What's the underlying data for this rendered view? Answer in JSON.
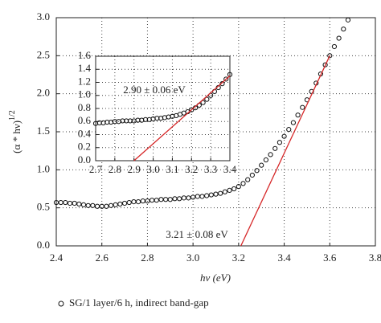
{
  "chart_data": [
    {
      "type": "scatter",
      "xlabel": "hν (eV)",
      "ylabel": "(α * hν)",
      "ylabel_exponent": "1/2",
      "xlim": [
        2.4,
        3.8
      ],
      "ylim": [
        0,
        3
      ],
      "xticks": [
        2.4,
        2.6,
        2.8,
        {
          "value": 3,
          "label": "3.0"
        },
        3.2,
        3.4,
        3.6,
        3.8
      ],
      "yticks": [
        {
          "value": 0,
          "label": "0.0"
        },
        0.5,
        {
          "value": 1,
          "label": "1.0"
        },
        1.5,
        {
          "value": 2,
          "label": "2.0"
        },
        2.5,
        {
          "value": 3,
          "label": "3.0"
        }
      ],
      "grid": true,
      "series": [
        {
          "name": "SG/1 layer/6 h, indirect band-gap",
          "color": "#111111",
          "x": [
            2.4,
            2.42,
            2.44,
            2.46,
            2.48,
            2.5,
            2.52,
            2.54,
            2.56,
            2.58,
            2.6,
            2.62,
            2.64,
            2.66,
            2.68,
            2.7,
            2.72,
            2.74,
            2.76,
            2.78,
            2.8,
            2.82,
            2.84,
            2.86,
            2.88,
            2.9,
            2.92,
            2.94,
            2.96,
            2.98,
            3.0,
            3.02,
            3.04,
            3.06,
            3.08,
            3.1,
            3.12,
            3.14,
            3.16,
            3.18,
            3.2,
            3.22,
            3.24,
            3.26,
            3.28,
            3.3,
            3.32,
            3.34,
            3.36,
            3.38,
            3.4,
            3.42,
            3.44,
            3.46,
            3.48,
            3.5,
            3.52,
            3.54,
            3.56,
            3.58,
            3.6,
            3.62,
            3.64,
            3.66,
            3.68
          ],
          "values": [
            0.57,
            0.57,
            0.57,
            0.56,
            0.56,
            0.55,
            0.54,
            0.53,
            0.53,
            0.52,
            0.52,
            0.52,
            0.53,
            0.54,
            0.55,
            0.56,
            0.57,
            0.58,
            0.58,
            0.59,
            0.59,
            0.6,
            0.6,
            0.61,
            0.61,
            0.61,
            0.62,
            0.62,
            0.63,
            0.63,
            0.64,
            0.65,
            0.65,
            0.66,
            0.67,
            0.68,
            0.69,
            0.71,
            0.73,
            0.75,
            0.78,
            0.82,
            0.87,
            0.93,
            0.99,
            1.06,
            1.13,
            1.2,
            1.28,
            1.36,
            1.44,
            1.53,
            1.62,
            1.72,
            1.82,
            1.92,
            2.03,
            2.14,
            2.26,
            2.38,
            2.5,
            2.62,
            2.73,
            2.85,
            2.97
          ]
        }
      ],
      "fit": {
        "color": "#d62728",
        "x": [
          3.21,
          3.6
        ],
        "values": [
          0,
          2.5
        ]
      },
      "annotation": "3.21 ± 0.08 eV"
    },
    {
      "type": "scatter",
      "xlim": [
        2.7,
        3.4
      ],
      "ylim": [
        0,
        1.6
      ],
      "xticks": [
        2.7,
        2.8,
        2.9,
        {
          "value": 3,
          "label": "3.0"
        },
        3.1,
        3.2,
        3.3,
        3.4
      ],
      "yticks": [
        {
          "value": 0,
          "label": "0.0"
        },
        0.2,
        0.4,
        0.6,
        0.8,
        {
          "value": 1,
          "label": "1.0"
        },
        1.2,
        1.4,
        1.6
      ],
      "grid": true,
      "series": [
        {
          "color": "#111111",
          "x": [
            2.7,
            2.72,
            2.74,
            2.76,
            2.78,
            2.8,
            2.82,
            2.84,
            2.86,
            2.88,
            2.9,
            2.92,
            2.94,
            2.96,
            2.98,
            3.0,
            3.02,
            3.04,
            3.06,
            3.08,
            3.1,
            3.12,
            3.14,
            3.16,
            3.18,
            3.2,
            3.22,
            3.24,
            3.26,
            3.28,
            3.3,
            3.32,
            3.34,
            3.36,
            3.38,
            3.4
          ],
          "values": [
            0.57,
            0.58,
            0.58,
            0.59,
            0.59,
            0.6,
            0.6,
            0.61,
            0.61,
            0.61,
            0.61,
            0.62,
            0.62,
            0.63,
            0.63,
            0.64,
            0.65,
            0.65,
            0.66,
            0.67,
            0.68,
            0.69,
            0.71,
            0.73,
            0.75,
            0.78,
            0.81,
            0.85,
            0.89,
            0.94,
            1.0,
            1.06,
            1.12,
            1.18,
            1.25,
            1.32
          ]
        }
      ],
      "fit": {
        "color": "#d62728",
        "x": [
          2.9,
          3.4
        ],
        "values": [
          0,
          1.3
        ]
      },
      "annotation": "2.90 ± 0.06 eV"
    }
  ]
}
